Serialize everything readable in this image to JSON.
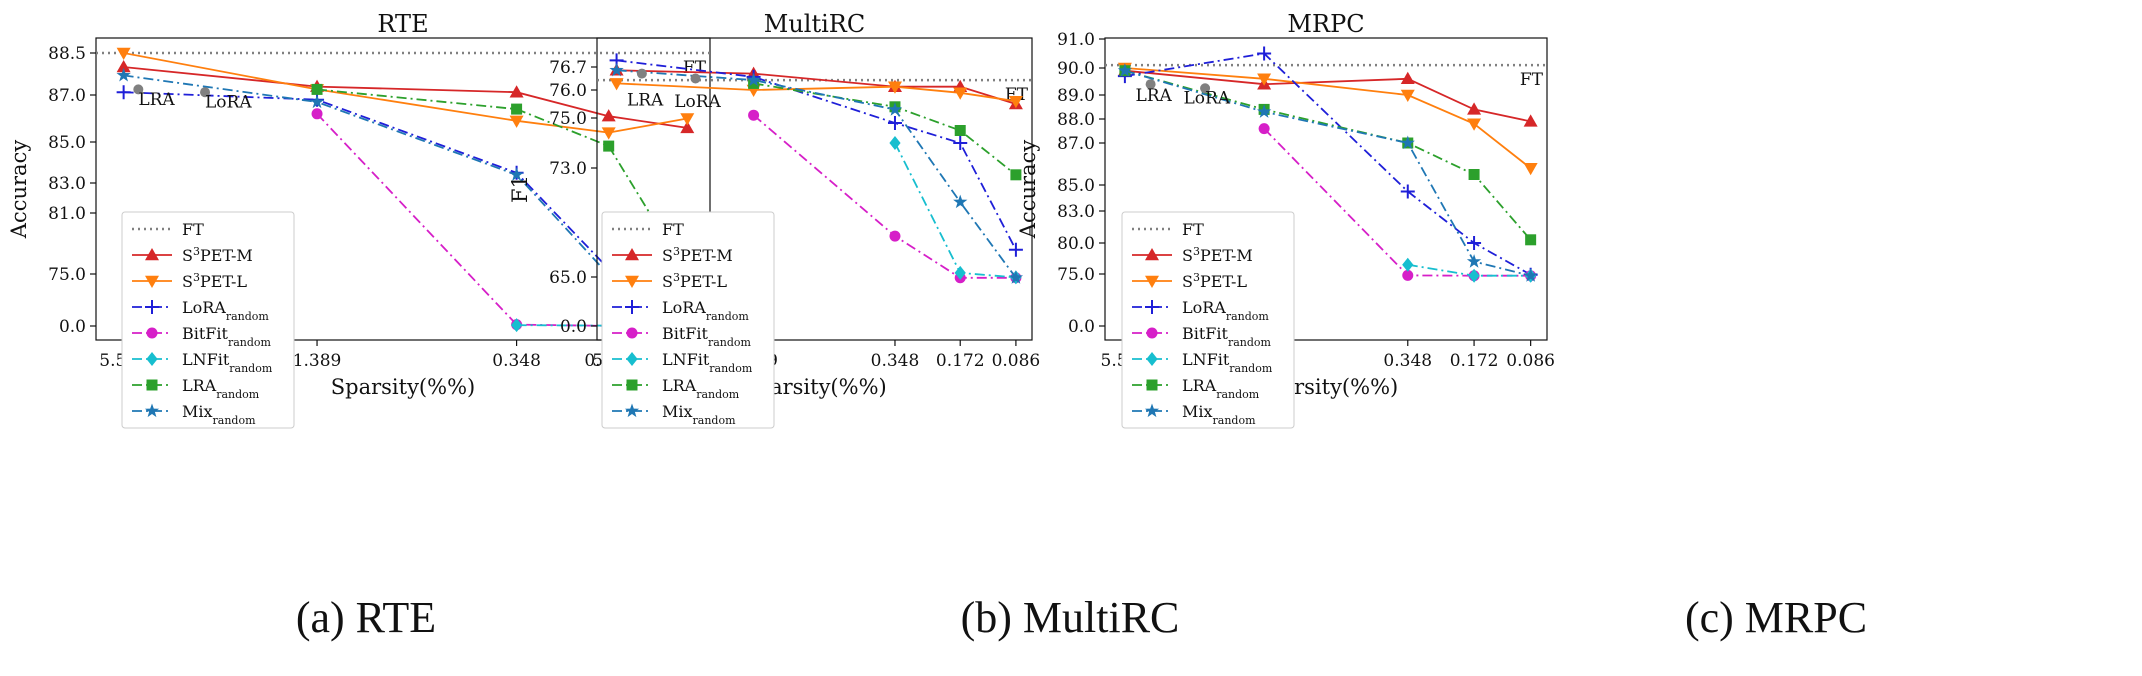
{
  "figure": {
    "xlabel": "Sparsity(%%)",
    "x_ticks": [
      "5.555",
      "1.389",
      "0.348",
      "0.172",
      "0.086"
    ],
    "ft_label": "FT",
    "legend": [
      {
        "key": "FT",
        "text": "FT",
        "sub": "",
        "sup": ""
      },
      {
        "key": "S3PET-M",
        "text": "S",
        "sup": "3",
        "after": "PET-M",
        "sub": ""
      },
      {
        "key": "S3PET-L",
        "text": "S",
        "sup": "3",
        "after": "PET-L",
        "sub": ""
      },
      {
        "key": "LoRA_random",
        "text": "LoRA",
        "sub": "random",
        "sup": ""
      },
      {
        "key": "BitFit_random",
        "text": "BitFit",
        "sub": "random",
        "sup": ""
      },
      {
        "key": "LNFit_random",
        "text": "LNFit",
        "sub": "random",
        "sup": ""
      },
      {
        "key": "LRA_random",
        "text": "LRA",
        "sub": "random",
        "sup": ""
      },
      {
        "key": "Mix_random",
        "text": "Mix",
        "sub": "random",
        "sup": ""
      }
    ],
    "colors": {
      "FT": "#808080",
      "S3PET-M": "#d62728",
      "S3PET-L": "#ff7f0e",
      "LoRA_random": "#1f1fd8",
      "BitFit_random": "#d61fc8",
      "LNFit_random": "#17becf",
      "LRA_random": "#2ca02c",
      "Mix_random": "#1f77b4",
      "points": "#808080"
    }
  },
  "captions": [
    "(a) RTE",
    "(b) MultiRC",
    "(c) MRPC"
  ],
  "chart_data": [
    {
      "type": "line",
      "title": "RTE",
      "ylabel": "Accuracy",
      "y_ticks": [
        "0.0",
        "75.0",
        "81.0",
        "83.0",
        "85.0",
        "87.0",
        "88.5"
      ],
      "ft": "88.5",
      "annotations": [
        {
          "text": "LRA",
          "x": "5.0",
          "y": "87.15"
        },
        {
          "text": "LoRA",
          "x": "3.1",
          "y": "87.05"
        }
      ],
      "series": [
        {
          "name": "S3PET-M",
          "marker": "triangle-up",
          "dash": "solid",
          "x": [
            "5.555",
            "1.389",
            "0.348",
            "0.172",
            "0.086"
          ],
          "y": [
            "88.0",
            "87.3",
            "87.1",
            "86.1",
            "85.6"
          ]
        },
        {
          "name": "S3PET-L",
          "marker": "triangle-down",
          "dash": "solid",
          "x": [
            "5.555",
            "1.389",
            "0.348",
            "0.172",
            "0.086"
          ],
          "y": [
            "88.5",
            "87.2",
            "85.9",
            "85.4",
            "86.0"
          ]
        },
        {
          "name": "LoRA_random",
          "marker": "plus",
          "dash": "dashdot",
          "x": [
            "5.555",
            "1.389",
            "0.348",
            "0.172",
            "0.086"
          ],
          "y": [
            "87.1",
            "86.8",
            "83.5",
            "75.5",
            "1.0"
          ]
        },
        {
          "name": "BitFit_random",
          "marker": "circle",
          "dash": "dashdot",
          "x": [
            "1.389",
            "0.348",
            "0.172",
            "0.086"
          ],
          "y": [
            "86.2",
            "2.0",
            "0.2",
            "0.0"
          ]
        },
        {
          "name": "LNFit_random",
          "marker": "diamond",
          "dash": "dashdot",
          "x": [
            "0.348",
            "0.172",
            "0.086"
          ],
          "y": [
            "1.2",
            "0.6",
            "0.0"
          ]
        },
        {
          "name": "LRA_random",
          "marker": "square",
          "dash": "dashdot",
          "x": [
            "1.389",
            "0.348",
            "0.172",
            "0.086"
          ],
          "y": [
            "87.2",
            "86.4",
            "84.8",
            "74.0"
          ]
        },
        {
          "name": "Mix_random",
          "marker": "star",
          "dash": "dashdot",
          "x": [
            "5.555",
            "1.389",
            "0.348",
            "0.172",
            "0.086"
          ],
          "y": [
            "87.7",
            "86.7",
            "83.4",
            "73.5",
            "0.0"
          ]
        }
      ],
      "points": [
        {
          "x": "5.0",
          "y": "87.2"
        },
        {
          "x": "3.1",
          "y": "87.1"
        }
      ]
    },
    {
      "type": "line",
      "title": "MultiRC",
      "ylabel": "F1",
      "y_ticks": [
        "0.0",
        "65.0",
        "73.0",
        "75.0",
        "76.0",
        "76.7"
      ],
      "ft": "76.3",
      "annotations": [
        {
          "text": "LRA",
          "x": "5.0",
          "y": "75.95"
        },
        {
          "text": "LoRA",
          "x": "3.1",
          "y": "75.9"
        }
      ],
      "series": [
        {
          "name": "S3PET-M",
          "marker": "triangle-up",
          "dash": "solid",
          "x": [
            "5.555",
            "1.389",
            "0.348",
            "0.172",
            "0.086"
          ],
          "y": [
            "76.6",
            "76.5",
            "76.1",
            "76.1",
            "75.5"
          ]
        },
        {
          "name": "S3PET-L",
          "marker": "triangle-down",
          "dash": "solid",
          "x": [
            "5.555",
            "1.389",
            "0.348",
            "0.172",
            "0.086"
          ],
          "y": [
            "76.2",
            "76.0",
            "76.1",
            "75.9",
            "75.6"
          ]
        },
        {
          "name": "LoRA_random",
          "marker": "plus",
          "dash": "dashdot",
          "x": [
            "5.555",
            "1.389",
            "0.348",
            "0.172",
            "0.086"
          ],
          "y": [
            "76.9",
            "76.4",
            "74.8",
            "74.0",
            "67.0"
          ]
        },
        {
          "name": "BitFit_random",
          "marker": "circle",
          "dash": "dashdot",
          "x": [
            "1.389",
            "0.348",
            "0.172",
            "0.086"
          ],
          "y": [
            "75.1",
            "68.0",
            "64.0",
            "64.0"
          ]
        },
        {
          "name": "LNFit_random",
          "marker": "diamond",
          "dash": "dashdot",
          "x": [
            "0.348",
            "0.172",
            "0.086"
          ],
          "y": [
            "74.0",
            "65.3",
            "64.5"
          ]
        },
        {
          "name": "LRA_random",
          "marker": "square",
          "dash": "dashdot",
          "x": [
            "1.389",
            "0.348",
            "0.172",
            "0.086"
          ],
          "y": [
            "76.2",
            "75.4",
            "74.5",
            "72.5"
          ]
        },
        {
          "name": "Mix_random",
          "marker": "star",
          "dash": "dashdot",
          "x": [
            "5.555",
            "1.389",
            "0.348",
            "0.172",
            "0.086"
          ],
          "y": [
            "76.6",
            "76.3",
            "75.3",
            "70.5",
            "64.0"
          ]
        }
      ],
      "points": [
        {
          "x": "4.3",
          "y": "76.5"
        },
        {
          "x": "2.5",
          "y": "76.35"
        }
      ]
    },
    {
      "type": "line",
      "title": "MRPC",
      "ylabel": "Accuracy",
      "y_ticks": [
        "0.0",
        "75.0",
        "80.0",
        "83.0",
        "85.0",
        "87.0",
        "88.0",
        "89.0",
        "90.0",
        "91.0"
      ],
      "ft": "90.1",
      "annotations": [
        {
          "text": "LRA",
          "x": "5.0",
          "y": "89.3"
        },
        {
          "text": "LoRA",
          "x": "3.1",
          "y": "89.2"
        }
      ],
      "series": [
        {
          "name": "S3PET-M",
          "marker": "triangle-up",
          "dash": "solid",
          "x": [
            "5.555",
            "1.389",
            "0.348",
            "0.172",
            "0.086"
          ],
          "y": [
            "89.9",
            "89.4",
            "89.6",
            "88.4",
            "87.9"
          ]
        },
        {
          "name": "S3PET-L",
          "marker": "triangle-down",
          "dash": "solid",
          "x": [
            "5.555",
            "1.389",
            "0.348",
            "0.172",
            "0.086"
          ],
          "y": [
            "90.0",
            "89.6",
            "89.0",
            "87.8",
            "85.8"
          ]
        },
        {
          "name": "LoRA_random",
          "marker": "plus",
          "dash": "dashdot",
          "x": [
            "5.555",
            "1.389",
            "0.348",
            "0.172",
            "0.086"
          ],
          "y": [
            "89.7",
            "90.5",
            "84.5",
            "80.0",
            "74.0"
          ]
        },
        {
          "name": "BitFit_random",
          "marker": "circle",
          "dash": "dashdot",
          "x": [
            "1.389",
            "0.348",
            "0.172",
            "0.086"
          ],
          "y": [
            "87.6",
            "73.0",
            "72.5",
            "72.5"
          ]
        },
        {
          "name": "LNFit_random",
          "marker": "diamond",
          "dash": "dashdot",
          "x": [
            "0.348",
            "0.172",
            "0.086"
          ],
          "y": [
            "76.5",
            "72.5",
            "72.5"
          ]
        },
        {
          "name": "LRA_random",
          "marker": "square",
          "dash": "dashdot",
          "x": [
            "5.555",
            "1.389",
            "0.348",
            "0.172",
            "0.086"
          ],
          "y": [
            "89.9",
            "88.4",
            "87.0",
            "85.5",
            "80.3"
          ]
        },
        {
          "name": "Mix_random",
          "marker": "star",
          "dash": "dashdot",
          "x": [
            "5.555",
            "1.389",
            "0.348",
            "0.172",
            "0.086"
          ],
          "y": [
            "89.9",
            "88.3",
            "87.0",
            "77.0",
            "72.5"
          ]
        }
      ],
      "points": [
        {
          "x": "4.3",
          "y": "89.4"
        },
        {
          "x": "2.5",
          "y": "89.25"
        }
      ]
    }
  ]
}
